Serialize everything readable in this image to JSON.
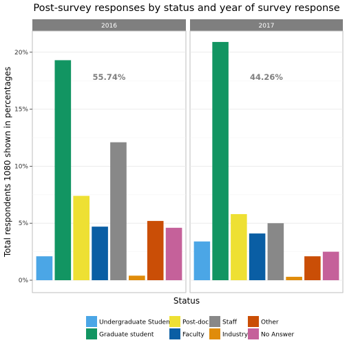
{
  "chart_data": {
    "type": "bar",
    "title": "Post-survey responses by status and year of survey response",
    "xlabel": "Status",
    "ylabel": "Total respondents 1080 shown in percentages",
    "ylim": [
      0,
      21.5
    ],
    "yticks": [
      0,
      5,
      10,
      15,
      20
    ],
    "ytick_labels": [
      "0%",
      "5%",
      "10%",
      "15%",
      "20%"
    ],
    "grid": true,
    "legend_position": "bottom",
    "categories": [
      "Undergraduate Student",
      "Graduate student",
      "Post-doc",
      "Faculty",
      "Staff",
      "Industry",
      "Other",
      "No Answer"
    ],
    "colors": [
      "#4ba6e6",
      "#129562",
      "#eee033",
      "#0a5ea4",
      "#888888",
      "#e08c0a",
      "#ca4e06",
      "#c5619a"
    ],
    "panels": [
      {
        "label": "2016",
        "annotation": "55.74%",
        "values": [
          2.1,
          19.3,
          7.4,
          4.7,
          12.1,
          0.4,
          5.2,
          4.6
        ]
      },
      {
        "label": "2017",
        "annotation": "44.26%",
        "values": [
          3.4,
          20.9,
          5.8,
          4.1,
          5.0,
          0.3,
          2.1,
          2.5
        ]
      }
    ]
  }
}
